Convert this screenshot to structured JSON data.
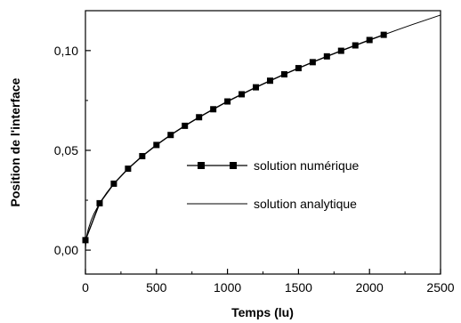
{
  "chart_data": {
    "type": "line",
    "xlabel": "Temps (lu)",
    "ylabel": "Position de l'interface",
    "xlim": [
      0,
      2500
    ],
    "ylim": [
      -0.012,
      0.12
    ],
    "xticks": [
      0,
      500,
      1000,
      1500,
      2000,
      2500
    ],
    "xtick_labels": [
      "0",
      "500",
      "1000",
      "1500",
      "2000",
      "2500"
    ],
    "yticks": [
      0.0,
      0.05,
      0.1
    ],
    "ytick_labels": [
      "0,00",
      "0,05",
      "0,10"
    ],
    "grid": false,
    "legend_position": "center-right",
    "series": [
      {
        "name": "solution numérique",
        "style": "line-square-markers",
        "color": "#000000",
        "x": [
          0,
          100,
          200,
          300,
          400,
          500,
          600,
          700,
          800,
          900,
          1000,
          1100,
          1200,
          1300,
          1400,
          1500,
          1600,
          1700,
          1800,
          1900,
          2000,
          2100
        ],
        "y": [
          0.005,
          0.0235,
          0.0333,
          0.0408,
          0.0471,
          0.0527,
          0.0577,
          0.0623,
          0.0666,
          0.0706,
          0.0745,
          0.0781,
          0.0816,
          0.0849,
          0.0881,
          0.0912,
          0.0942,
          0.0971,
          0.0999,
          0.1026,
          0.1053,
          0.1079
        ]
      },
      {
        "name": "solution analytique",
        "style": "line",
        "color": "#000000",
        "x": [
          0,
          5,
          10,
          20,
          40,
          60,
          100,
          150,
          200,
          300,
          400,
          500,
          600,
          700,
          800,
          900,
          1000,
          1100,
          1200,
          1300,
          1400,
          1500,
          1600,
          1700,
          1800,
          1900,
          2000,
          2100,
          2200,
          2300,
          2400,
          2500
        ],
        "y": [
          0.0,
          0.0053,
          0.0074,
          0.0105,
          0.0149,
          0.0182,
          0.0235,
          0.0288,
          0.0333,
          0.0408,
          0.0471,
          0.0527,
          0.0577,
          0.0623,
          0.0666,
          0.0706,
          0.0745,
          0.0781,
          0.0816,
          0.0849,
          0.0881,
          0.0912,
          0.0942,
          0.0971,
          0.0999,
          0.1026,
          0.1053,
          0.1079,
          0.1105,
          0.113,
          0.1154,
          0.1178
        ]
      }
    ]
  }
}
